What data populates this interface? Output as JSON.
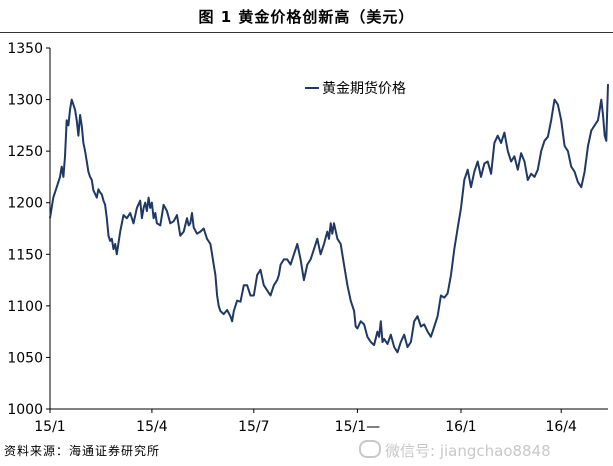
{
  "header": {
    "title": "图 1    黄金价格创新高（美元）"
  },
  "footer": {
    "source": "资料来源：海通证券研究所",
    "watermark": "微信号: jiangchao8848"
  },
  "chart_data": {
    "type": "line",
    "title": "图 1    黄金价格创新高（美元）",
    "xlabel": "",
    "ylabel": "",
    "ylim": [
      1000,
      1350
    ],
    "yticks": [
      "1000",
      "1050",
      "1100",
      "1150",
      "1200",
      "1250",
      "1300",
      "1350"
    ],
    "xticks": [
      {
        "label": "15/1",
        "x": 0
      },
      {
        "label": "15/4",
        "x": 61
      },
      {
        "label": "15/7",
        "x": 122
      },
      {
        "label": "15/1—",
        "x": 184
      },
      {
        "label": "16/1",
        "x": 246
      },
      {
        "label": "16/4",
        "x": 306
      }
    ],
    "grid": false,
    "legend": {
      "position": "top-center",
      "label": "黄金期货价格"
    },
    "colors": {
      "line": "#1f3864"
    },
    "series": [
      {
        "name": "黄金期货价格",
        "points": [
          [
            0,
            1185
          ],
          [
            2,
            1205
          ],
          [
            4,
            1215
          ],
          [
            6,
            1225
          ],
          [
            7,
            1235
          ],
          [
            8,
            1225
          ],
          [
            9,
            1245
          ],
          [
            10,
            1280
          ],
          [
            11,
            1275
          ],
          [
            12,
            1290
          ],
          [
            13,
            1300
          ],
          [
            14,
            1295
          ],
          [
            15,
            1290
          ],
          [
            16,
            1280
          ],
          [
            17,
            1265
          ],
          [
            18,
            1285
          ],
          [
            19,
            1275
          ],
          [
            20,
            1258
          ],
          [
            21,
            1250
          ],
          [
            22,
            1240
          ],
          [
            23,
            1230
          ],
          [
            24,
            1225
          ],
          [
            25,
            1222
          ],
          [
            26,
            1212
          ],
          [
            28,
            1205
          ],
          [
            29,
            1213
          ],
          [
            30,
            1210
          ],
          [
            31,
            1208
          ],
          [
            32,
            1202
          ],
          [
            33,
            1198
          ],
          [
            34,
            1185
          ],
          [
            35,
            1168
          ],
          [
            36,
            1163
          ],
          [
            37,
            1165
          ],
          [
            38,
            1155
          ],
          [
            39,
            1160
          ],
          [
            40,
            1150
          ],
          [
            42,
            1172
          ],
          [
            44,
            1188
          ],
          [
            46,
            1185
          ],
          [
            48,
            1190
          ],
          [
            50,
            1180
          ],
          [
            52,
            1195
          ],
          [
            54,
            1202
          ],
          [
            55,
            1185
          ],
          [
            56,
            1195
          ],
          [
            57,
            1200
          ],
          [
            58,
            1192
          ],
          [
            59,
            1205
          ],
          [
            60,
            1195
          ],
          [
            61,
            1200
          ],
          [
            62,
            1185
          ],
          [
            63,
            1190
          ],
          [
            64,
            1180
          ],
          [
            66,
            1178
          ],
          [
            68,
            1198
          ],
          [
            70,
            1192
          ],
          [
            72,
            1180
          ],
          [
            74,
            1182
          ],
          [
            76,
            1188
          ],
          [
            78,
            1168
          ],
          [
            80,
            1172
          ],
          [
            82,
            1185
          ],
          [
            83,
            1178
          ],
          [
            84,
            1180
          ],
          [
            85,
            1190
          ],
          [
            86,
            1176
          ],
          [
            88,
            1170
          ],
          [
            90,
            1172
          ],
          [
            92,
            1175
          ],
          [
            94,
            1165
          ],
          [
            96,
            1160
          ],
          [
            97,
            1150
          ],
          [
            98,
            1140
          ],
          [
            99,
            1130
          ],
          [
            100,
            1110
          ],
          [
            101,
            1100
          ],
          [
            102,
            1095
          ],
          [
            104,
            1092
          ],
          [
            106,
            1096
          ],
          [
            108,
            1090
          ],
          [
            109,
            1085
          ],
          [
            110,
            1095
          ],
          [
            112,
            1105
          ],
          [
            114,
            1104
          ],
          [
            116,
            1120
          ],
          [
            118,
            1120
          ],
          [
            120,
            1110
          ],
          [
            122,
            1110
          ],
          [
            124,
            1130
          ],
          [
            126,
            1135
          ],
          [
            128,
            1120
          ],
          [
            130,
            1115
          ],
          [
            132,
            1110
          ],
          [
            134,
            1120
          ],
          [
            136,
            1125
          ],
          [
            137,
            1130
          ],
          [
            138,
            1140
          ],
          [
            140,
            1145
          ],
          [
            142,
            1145
          ],
          [
            144,
            1140
          ],
          [
            146,
            1150
          ],
          [
            148,
            1160
          ],
          [
            150,
            1145
          ],
          [
            152,
            1125
          ],
          [
            154,
            1140
          ],
          [
            156,
            1145
          ],
          [
            158,
            1155
          ],
          [
            160,
            1165
          ],
          [
            162,
            1150
          ],
          [
            164,
            1160
          ],
          [
            166,
            1172
          ],
          [
            167,
            1165
          ],
          [
            168,
            1180
          ],
          [
            169,
            1170
          ],
          [
            170,
            1180
          ],
          [
            172,
            1165
          ],
          [
            174,
            1160
          ],
          [
            176,
            1140
          ],
          [
            178,
            1120
          ],
          [
            180,
            1105
          ],
          [
            182,
            1095
          ],
          [
            183,
            1080
          ],
          [
            184,
            1078
          ],
          [
            186,
            1085
          ],
          [
            188,
            1082
          ],
          [
            190,
            1070
          ],
          [
            192,
            1065
          ],
          [
            194,
            1062
          ],
          [
            196,
            1075
          ],
          [
            197,
            1070
          ],
          [
            198,
            1085
          ],
          [
            199,
            1065
          ],
          [
            200,
            1068
          ],
          [
            202,
            1063
          ],
          [
            204,
            1072
          ],
          [
            206,
            1060
          ],
          [
            208,
            1055
          ],
          [
            210,
            1065
          ],
          [
            212,
            1072
          ],
          [
            214,
            1060
          ],
          [
            216,
            1065
          ],
          [
            218,
            1085
          ],
          [
            220,
            1090
          ],
          [
            222,
            1080
          ],
          [
            224,
            1082
          ],
          [
            226,
            1075
          ],
          [
            228,
            1070
          ],
          [
            230,
            1080
          ],
          [
            232,
            1090
          ],
          [
            234,
            1110
          ],
          [
            236,
            1108
          ],
          [
            238,
            1112
          ],
          [
            240,
            1130
          ],
          [
            242,
            1155
          ],
          [
            244,
            1175
          ],
          [
            246,
            1195
          ],
          [
            248,
            1222
          ],
          [
            250,
            1232
          ],
          [
            252,
            1215
          ],
          [
            254,
            1230
          ],
          [
            256,
            1240
          ],
          [
            258,
            1225
          ],
          [
            260,
            1238
          ],
          [
            262,
            1240
          ],
          [
            264,
            1228
          ],
          [
            266,
            1258
          ],
          [
            268,
            1265
          ],
          [
            270,
            1258
          ],
          [
            272,
            1268
          ],
          [
            274,
            1250
          ],
          [
            276,
            1240
          ],
          [
            278,
            1245
          ],
          [
            280,
            1232
          ],
          [
            282,
            1248
          ],
          [
            284,
            1240
          ],
          [
            286,
            1222
          ],
          [
            288,
            1228
          ],
          [
            290,
            1225
          ],
          [
            292,
            1232
          ],
          [
            294,
            1250
          ],
          [
            296,
            1260
          ],
          [
            298,
            1264
          ],
          [
            300,
            1280
          ],
          [
            302,
            1300
          ],
          [
            304,
            1295
          ],
          [
            306,
            1280
          ],
          [
            308,
            1255
          ],
          [
            310,
            1250
          ],
          [
            312,
            1235
          ],
          [
            314,
            1230
          ],
          [
            316,
            1220
          ],
          [
            318,
            1215
          ],
          [
            320,
            1230
          ],
          [
            322,
            1255
          ],
          [
            324,
            1270
          ],
          [
            326,
            1275
          ],
          [
            328,
            1280
          ],
          [
            330,
            1300
          ],
          [
            331,
            1285
          ],
          [
            332,
            1265
          ],
          [
            333,
            1260
          ],
          [
            334,
            1315
          ]
        ]
      }
    ]
  }
}
